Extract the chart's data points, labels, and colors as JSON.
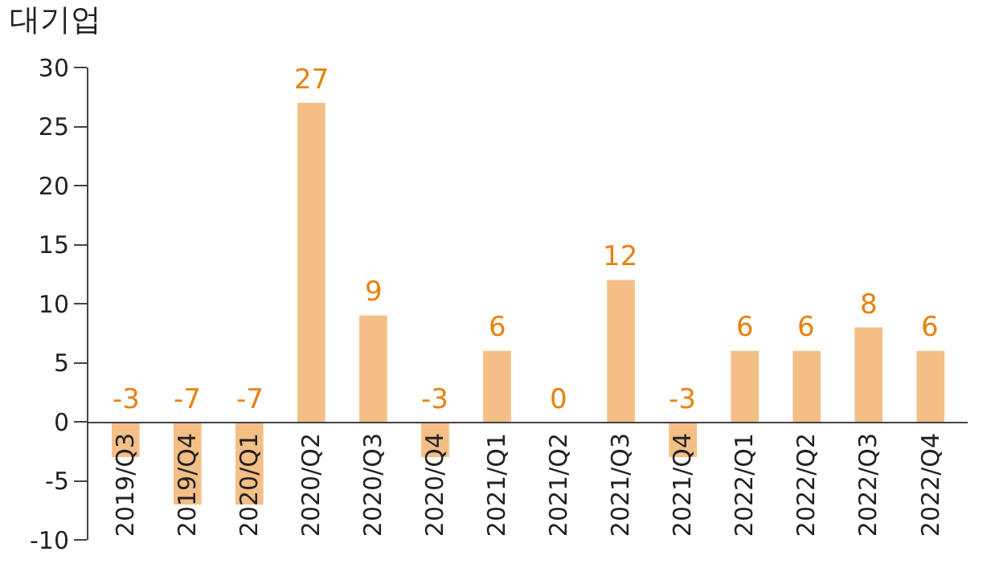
{
  "chart_data": {
    "type": "bar",
    "title": "대기업",
    "categories": [
      "2019/Q3",
      "2019/Q4",
      "2020/Q1",
      "2020/Q2",
      "2020/Q3",
      "2020/Q4",
      "2021/Q1",
      "2021/Q2",
      "2021/Q3",
      "2021/Q4",
      "2022/Q1",
      "2022/Q2",
      "2022/Q3",
      "2022/Q4"
    ],
    "values": [
      -3,
      -7,
      -7,
      27,
      9,
      -3,
      6,
      0,
      12,
      -3,
      6,
      6,
      8,
      6
    ],
    "color": "#f4bf86",
    "ylim": [
      -10,
      30
    ],
    "yticks": [
      -10,
      -5,
      0,
      5,
      10,
      15,
      20,
      25,
      30
    ],
    "data_labels": true
  }
}
